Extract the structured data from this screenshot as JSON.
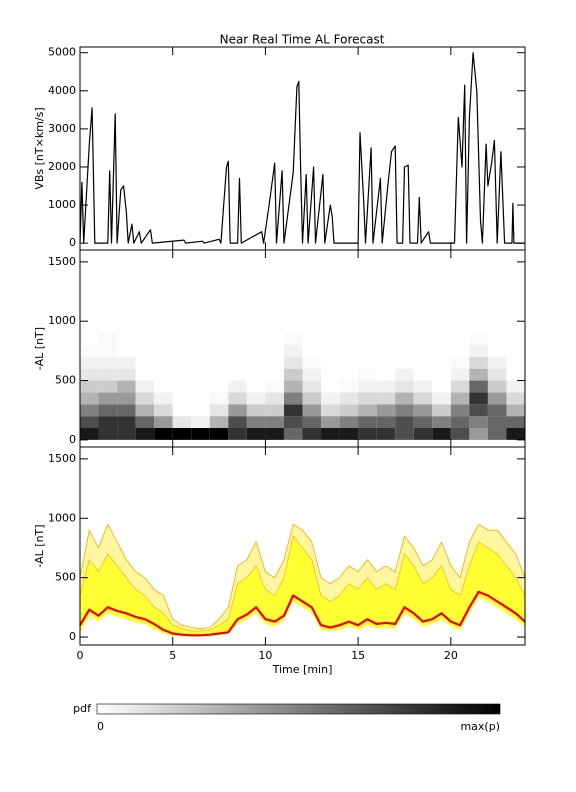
{
  "chart_data": [
    {
      "type": "line",
      "title": "Near Real Time AL Forecast",
      "ylabel": "VBs [nT×km/s]",
      "color": "#000000",
      "xlim": [
        0,
        24
      ],
      "ylim": [
        -180,
        5150
      ],
      "yticks": [
        0,
        1000,
        2000,
        3000,
        4000,
        5000
      ],
      "x": [
        0.0,
        0.1,
        0.2,
        0.5,
        0.65,
        0.8,
        1.5,
        1.6,
        1.7,
        1.9,
        2.0,
        2.2,
        2.35,
        2.5,
        2.6,
        2.8,
        2.9,
        3.2,
        3.3,
        3.8,
        3.9,
        5.6,
        5.7,
        6.6,
        6.7,
        7.5,
        7.6,
        7.9,
        8.0,
        8.1,
        8.5,
        8.6,
        8.7,
        9.8,
        9.9,
        10.2,
        10.5,
        10.6,
        10.9,
        11.0,
        11.5,
        11.7,
        11.8,
        11.9,
        12.0,
        12.2,
        12.3,
        12.6,
        12.7,
        13.1,
        13.2,
        13.5,
        13.6,
        13.7,
        15.0,
        15.1,
        15.3,
        15.4,
        15.7,
        15.8,
        16.2,
        16.3,
        16.6,
        16.8,
        17.0,
        17.1,
        17.4,
        17.5,
        17.7,
        17.8,
        18.2,
        18.3,
        18.4,
        18.8,
        18.9,
        20.2,
        20.4,
        20.6,
        20.75,
        20.85,
        21.0,
        21.2,
        21.4,
        21.6,
        21.7,
        21.9,
        22.0,
        22.2,
        22.35,
        22.5,
        22.7,
        22.9,
        23.3,
        23.35,
        23.4,
        24.0
      ],
      "values": [
        0,
        1600,
        0,
        2600,
        3550,
        0,
        0,
        1900,
        0,
        3400,
        0,
        1400,
        1500,
        800,
        0,
        500,
        0,
        300,
        0,
        350,
        0,
        80,
        0,
        50,
        0,
        100,
        0,
        2000,
        2150,
        0,
        0,
        1700,
        0,
        300,
        0,
        1000,
        2100,
        0,
        1900,
        0,
        1850,
        4100,
        4250,
        2000,
        0,
        1800,
        0,
        2000,
        0,
        1800,
        0,
        1000,
        700,
        0,
        0,
        2900,
        1100,
        0,
        2500,
        0,
        1700,
        0,
        1500,
        2400,
        2550,
        0,
        0,
        2000,
        2050,
        0,
        0,
        1200,
        0,
        300,
        0,
        0,
        3300,
        2000,
        4150,
        0,
        3300,
        5000,
        4000,
        600,
        0,
        2600,
        1500,
        2100,
        2700,
        0,
        2400,
        0,
        0,
        1050,
        0,
        0
      ]
    },
    {
      "type": "heatmap",
      "ylabel": "-AL [nT]",
      "xlim": [
        0,
        24
      ],
      "ylim": [
        -60,
        1600
      ],
      "yticks": [
        0,
        500,
        1000,
        1500
      ],
      "x_bins": [
        0,
        1,
        2,
        3,
        4,
        5,
        6,
        7,
        8,
        9,
        10,
        11,
        12,
        13,
        14,
        15,
        16,
        17,
        18,
        19,
        20,
        21,
        22,
        23,
        24
      ],
      "y_bins": [
        0,
        100,
        200,
        300,
        400,
        500,
        600,
        700,
        800,
        900
      ],
      "pdf": [
        [
          0.9,
          0.7,
          0.5,
          0.3,
          0.2,
          0.1,
          0.05,
          0.02,
          0
        ],
        [
          0.8,
          0.8,
          0.6,
          0.4,
          0.2,
          0.1,
          0.05,
          0.02,
          0.02
        ],
        [
          0.8,
          0.8,
          0.6,
          0.4,
          0.3,
          0.1,
          0.05,
          0,
          0
        ],
        [
          0.9,
          0.6,
          0.3,
          0.15,
          0.05,
          0,
          0,
          0,
          0
        ],
        [
          1,
          0.4,
          0.15,
          0.05,
          0,
          0,
          0,
          0,
          0
        ],
        [
          1,
          0.1,
          0,
          0,
          0,
          0,
          0,
          0,
          0
        ],
        [
          1,
          0.05,
          0,
          0,
          0,
          0,
          0,
          0,
          0
        ],
        [
          1,
          0.3,
          0.1,
          0.02,
          0,
          0,
          0,
          0,
          0
        ],
        [
          0.8,
          0.7,
          0.4,
          0.15,
          0.05,
          0,
          0,
          0,
          0
        ],
        [
          0.9,
          0.5,
          0.2,
          0.05,
          0,
          0,
          0,
          0,
          0
        ],
        [
          0.9,
          0.5,
          0.2,
          0.1,
          0.02,
          0,
          0,
          0,
          0
        ],
        [
          0.6,
          0.7,
          0.8,
          0.5,
          0.3,
          0.2,
          0.1,
          0.05,
          0.02
        ],
        [
          0.8,
          0.6,
          0.4,
          0.2,
          0.1,
          0.05,
          0.02,
          0,
          0
        ],
        [
          0.9,
          0.4,
          0.15,
          0.05,
          0,
          0,
          0,
          0,
          0
        ],
        [
          0.9,
          0.5,
          0.2,
          0.1,
          0.02,
          0,
          0,
          0,
          0
        ],
        [
          0.8,
          0.6,
          0.3,
          0.15,
          0.05,
          0.02,
          0,
          0,
          0
        ],
        [
          0.8,
          0.6,
          0.4,
          0.15,
          0.05,
          0,
          0,
          0,
          0
        ],
        [
          0.7,
          0.7,
          0.5,
          0.3,
          0.1,
          0.05,
          0,
          0,
          0
        ],
        [
          0.8,
          0.6,
          0.4,
          0.15,
          0.05,
          0,
          0,
          0,
          0
        ],
        [
          0.9,
          0.5,
          0.2,
          0.05,
          0,
          0,
          0,
          0,
          0
        ],
        [
          0.7,
          0.6,
          0.5,
          0.3,
          0.15,
          0.05,
          0.02,
          0,
          0
        ],
        [
          0.4,
          0.5,
          0.7,
          0.8,
          0.6,
          0.3,
          0.15,
          0.05,
          0.02
        ],
        [
          0.6,
          0.6,
          0.6,
          0.4,
          0.2,
          0.1,
          0.05,
          0,
          0
        ],
        [
          0.9,
          0.6,
          0.3,
          0.15,
          0.05,
          0,
          0,
          0,
          0
        ]
      ],
      "colorbar": {
        "title": "pdf",
        "ticks": [
          0,
          {
            "value": 1,
            "label": "max(p)"
          }
        ]
      }
    },
    {
      "type": "band",
      "ylabel": "-AL [nT]",
      "xlabel": "Time [min]",
      "xlim": [
        0,
        24
      ],
      "xticks": [
        0,
        5,
        10,
        15,
        20
      ],
      "ylim": [
        -67,
        1600
      ],
      "yticks": [
        0,
        500,
        1000,
        1500
      ],
      "band_color": "#ffff33",
      "envelope_color": "#ffa500",
      "median_color": "#ee0000",
      "x": [
        0,
        0.5,
        1,
        1.5,
        2,
        2.5,
        3,
        3.5,
        4,
        4.5,
        5,
        5.5,
        6,
        6.5,
        7,
        7.5,
        8,
        8.5,
        9,
        9.5,
        10,
        10.5,
        11,
        11.5,
        12,
        12.5,
        13,
        13.5,
        14,
        14.5,
        15,
        15.5,
        16,
        16.5,
        17,
        17.5,
        18,
        18.5,
        19,
        19.5,
        20,
        20.5,
        21,
        21.5,
        22,
        22.5,
        23,
        23.5,
        24
      ],
      "median": [
        100,
        230,
        180,
        250,
        220,
        200,
        170,
        150,
        110,
        60,
        30,
        20,
        15,
        15,
        20,
        30,
        40,
        150,
        190,
        250,
        150,
        130,
        180,
        350,
        300,
        250,
        100,
        80,
        100,
        130,
        100,
        150,
        110,
        120,
        110,
        250,
        200,
        130,
        150,
        200,
        130,
        100,
        250,
        380,
        350,
        300,
        250,
        200,
        130
      ],
      "lower": [
        30,
        180,
        130,
        200,
        170,
        150,
        120,
        110,
        60,
        30,
        10,
        5,
        5,
        5,
        10,
        15,
        25,
        110,
        150,
        200,
        110,
        90,
        140,
        300,
        250,
        200,
        60,
        50,
        60,
        90,
        60,
        100,
        70,
        80,
        70,
        200,
        150,
        90,
        110,
        150,
        90,
        60,
        200,
        330,
        300,
        250,
        200,
        150,
        90
      ],
      "upper": [
        350,
        650,
        550,
        700,
        600,
        500,
        400,
        350,
        250,
        200,
        100,
        70,
        50,
        50,
        60,
        100,
        150,
        450,
        500,
        600,
        400,
        350,
        500,
        850,
        750,
        650,
        350,
        300,
        350,
        450,
        400,
        500,
        400,
        450,
        400,
        700,
        600,
        450,
        500,
        600,
        400,
        350,
        600,
        800,
        750,
        700,
        600,
        500,
        350
      ],
      "envelope": [
        500,
        900,
        750,
        950,
        800,
        650,
        550,
        500,
        400,
        350,
        150,
        100,
        80,
        70,
        80,
        150,
        250,
        600,
        650,
        800,
        550,
        500,
        650,
        950,
        900,
        800,
        500,
        450,
        500,
        600,
        550,
        650,
        550,
        600,
        550,
        850,
        750,
        600,
        650,
        800,
        600,
        500,
        800,
        950,
        900,
        900,
        800,
        700,
        500
      ]
    }
  ]
}
